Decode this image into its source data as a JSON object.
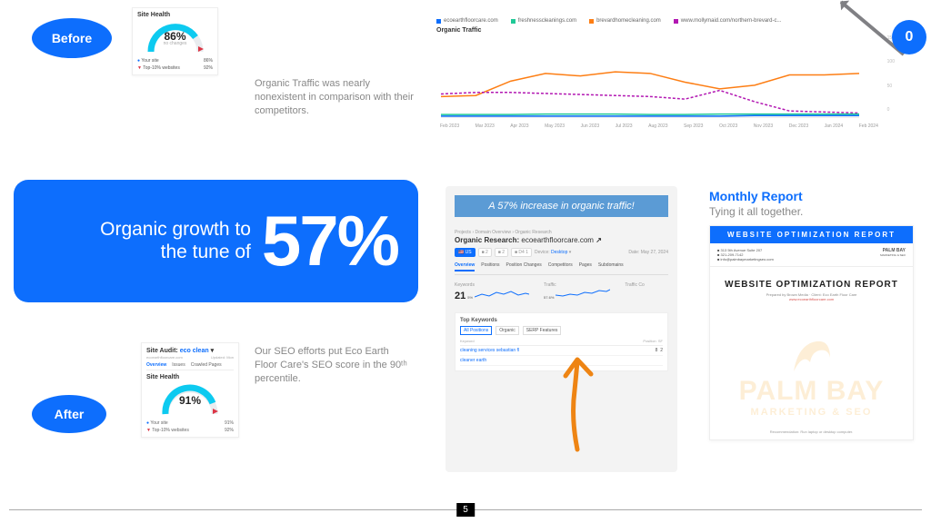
{
  "badges": {
    "before": "Before",
    "after": "After",
    "zero": "0"
  },
  "siteHealthBefore": {
    "title": "Site Health",
    "percent": "86%",
    "sub": "no changes",
    "rows": [
      {
        "icon": "●",
        "label": "Your site",
        "val": "86%",
        "color": "#0d6efd"
      },
      {
        "icon": "▼",
        "label": "Top-10% websites",
        "val": "92%",
        "color": "#dc3545"
      }
    ],
    "gauge": {
      "fill": "#0dcaf0",
      "bg": "#e9ecef",
      "pct": 0.86
    }
  },
  "beforeDesc": "Organic Traffic was nearly nonexistent in comparison with their competitors.",
  "organicTraffic": {
    "title": "Organic Traffic",
    "legend": [
      {
        "label": "ecoearthfloorcare.com",
        "color": "#0d6efd"
      },
      {
        "label": "freshnesscleanings.com",
        "color": "#20c997"
      },
      {
        "label": "brevardhomecleaning.com",
        "color": "#fd7e14"
      },
      {
        "label": "www.mollymaid.com/northern-brevard-c...",
        "color": "#b217b2"
      }
    ],
    "xlabels": [
      "Feb 2023",
      "Mar 2023",
      "Apr 2023",
      "May 2023",
      "Jun 2023",
      "Jul 2023",
      "Aug 2023",
      "Sep 2023",
      "Oct 2023",
      "Nov 2023",
      "Dec 2023",
      "Jan 2024",
      "Feb 2024"
    ],
    "ylabels": [
      "150",
      "100",
      "50",
      "0"
    ],
    "series": {
      "blue": [
        2,
        2,
        2,
        2,
        2,
        2,
        2,
        2,
        2,
        3,
        3,
        3,
        3
      ],
      "green": [
        5,
        5,
        5,
        6,
        6,
        6,
        5,
        5,
        6,
        6,
        6,
        6,
        6
      ],
      "orange": [
        40,
        42,
        70,
        85,
        80,
        88,
        85,
        68,
        55,
        62,
        82,
        82,
        85
      ],
      "purple": [
        45,
        48,
        48,
        46,
        44,
        42,
        40,
        35,
        52,
        30,
        12,
        10,
        8
      ]
    }
  },
  "headline": {
    "line1": "Organic growth to",
    "line2": "the tune of",
    "pct": "57%"
  },
  "siteAudit": {
    "header": "Site Audit:",
    "project": "eco clean",
    "domain": "ecoearthfloorcare.com",
    "updated": "Updated: Mon",
    "tabs": [
      "Overview",
      "Issues",
      "Crawled Pages"
    ],
    "shTitle": "Site Health",
    "percent": "91%",
    "rows": [
      {
        "icon": "●",
        "label": "Your site",
        "val": "91%",
        "color": "#0d6efd"
      },
      {
        "icon": "▼",
        "label": "Top-10% websites",
        "val": "92%",
        "color": "#dc3545"
      }
    ]
  },
  "afterDesc": "Our SEO efforts  put Eco Earth Floor Care's SEO score in the 90ᵗʰ percentile.",
  "orgResearch": {
    "banner": "A 57% increase in organic traffic!",
    "breadcrumb": "Projects  ›  Domain Overview  ›  Organic Research",
    "title": "Organic Research:",
    "domain": "ecoearthfloorcare.com",
    "pills": {
      "db": "US",
      "d1": "2",
      "d2": "2",
      "d3": "D4 1",
      "device": "Desktop"
    },
    "date": "Date: May 27, 2024",
    "tabs": [
      "Overview",
      "Positions",
      "Position Changes",
      "Competitors",
      "Pages",
      "Subdomains"
    ],
    "stats": {
      "keywords": {
        "label": "Keywords",
        "val": "21",
        "trend": "5%"
      },
      "traffic": {
        "label": "Traffic",
        "val": "57.6%"
      },
      "trafficCost": {
        "label": "Traffic Co"
      }
    },
    "topKw": {
      "title": "Top Keywords",
      "tabs": [
        "All Positions",
        "Organic",
        "SERP Features"
      ],
      "hdr": [
        "Keyword",
        "Position",
        "SF"
      ],
      "rows": [
        {
          "kw": "cleaning services sebastian fl",
          "pos": "8",
          "sf": "2"
        },
        {
          "kw": "cleaner earth",
          "pos": "",
          "sf": ""
        }
      ]
    }
  },
  "monthly": {
    "title": "Monthly Report",
    "sub": "Tying it all together.",
    "bluebar": "WEBSITE OPTIMIZATION REPORT",
    "contact": {
      "l1": "313 5th Avenue Suite 207",
      "l2": "321-209-7142",
      "l3": "info@palmbaymarketingseo.com"
    },
    "logoSmall": {
      "l1": "PALM BAY",
      "l2": "MARKETING & SEO"
    },
    "bodyTitle": "WEBSITE OPTIMIZATION REPORT",
    "bodySub": "Prepared by Brown Media  ·  Client:  Eco Earth Floor Care",
    "bodyLink": "www.ecoearthfloorcare.com",
    "watermark": {
      "main": "PALM BAY",
      "sub": "MARKETING & SEO"
    },
    "bodyFoot": "Recommendation: Run laptop or desktop computer."
  },
  "pageNum": "5",
  "colors": {
    "blue": "#0d6efd",
    "orangeArrow": "#ee8413"
  }
}
